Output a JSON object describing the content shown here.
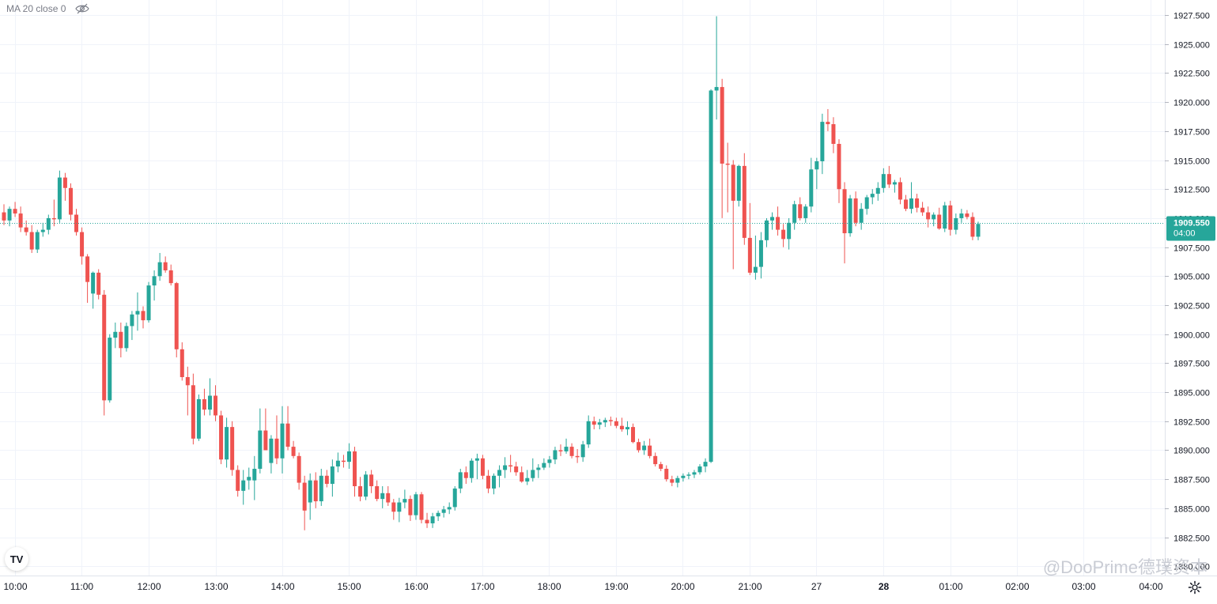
{
  "legend": {
    "text": "MA 20 close 0",
    "icon": "eye-off-icon"
  },
  "price_tag": {
    "price": "1909.550",
    "countdown": "04:00",
    "color": "#26a69a"
  },
  "watermark": "@DooPrime德璞资本",
  "logo": "TV",
  "settings_icon": "gear-icon",
  "colors": {
    "up": "#26a69a",
    "down": "#ef5350",
    "grid": "#f0f3fa",
    "axis_text": "#131722",
    "current_line": "#26a69a"
  },
  "chart_data": {
    "type": "candlestick",
    "y_ticks": [
      "1927.500",
      "1925.000",
      "1922.500",
      "1920.000",
      "1917.500",
      "1915.000",
      "1912.500",
      "1910.000",
      "1907.500",
      "1905.000",
      "1902.500",
      "1900.000",
      "1897.500",
      "1895.000",
      "1892.500",
      "1890.000",
      "1887.500",
      "1885.000",
      "1882.500",
      "1880.000"
    ],
    "x_ticks": [
      "10:00",
      "11:00",
      "12:00",
      "13:00",
      "14:00",
      "15:00",
      "16:00",
      "17:00",
      "18:00",
      "19:00",
      "20:00",
      "21:00",
      "27",
      "28",
      "01:00",
      "02:00",
      "03:00",
      "04:00"
    ],
    "ylim": [
      1879.2,
      1928.8
    ],
    "current_price": 1909.55,
    "grid": true,
    "candles": [
      [
        1910.5,
        1911.2,
        1909.4,
        1909.8
      ],
      [
        1909.8,
        1911.0,
        1909.3,
        1910.8
      ],
      [
        1910.8,
        1911.4,
        1910.1,
        1910.4
      ],
      [
        1910.4,
        1911.0,
        1908.8,
        1909.2
      ],
      [
        1909.2,
        1909.8,
        1908.5,
        1908.8
      ],
      [
        1908.8,
        1909.4,
        1907.0,
        1907.3
      ],
      [
        1907.3,
        1909.0,
        1907.0,
        1908.8
      ],
      [
        1908.8,
        1909.6,
        1908.4,
        1909.0
      ],
      [
        1909.0,
        1910.3,
        1908.6,
        1910.0
      ],
      [
        1910.0,
        1911.6,
        1909.3,
        1909.9
      ],
      [
        1909.9,
        1914.1,
        1909.6,
        1913.5
      ],
      [
        1913.5,
        1913.9,
        1911.5,
        1912.6
      ],
      [
        1912.6,
        1913.0,
        1909.8,
        1910.3
      ],
      [
        1910.3,
        1910.8,
        1908.5,
        1908.8
      ],
      [
        1908.8,
        1909.2,
        1906.0,
        1906.7
      ],
      [
        1906.7,
        1906.9,
        1902.7,
        1904.5
      ],
      [
        1903.5,
        1905.4,
        1902.2,
        1905.3
      ],
      [
        1905.3,
        1905.6,
        1903.0,
        1903.4
      ],
      [
        1903.4,
        1903.8,
        1893.0,
        1894.3
      ],
      [
        1894.3,
        1900.0,
        1894.1,
        1899.7
      ],
      [
        1899.7,
        1901.0,
        1898.8,
        1900.2
      ],
      [
        1900.2,
        1901.0,
        1898.0,
        1898.8
      ],
      [
        1898.8,
        1901.0,
        1898.5,
        1900.7
      ],
      [
        1900.7,
        1902.0,
        1899.5,
        1901.7
      ],
      [
        1901.7,
        1903.6,
        1900.3,
        1902.0
      ],
      [
        1902.0,
        1902.4,
        1900.5,
        1901.2
      ],
      [
        1901.2,
        1904.5,
        1901.0,
        1904.2
      ],
      [
        1904.2,
        1905.5,
        1902.9,
        1905.0
      ],
      [
        1905.0,
        1907.0,
        1904.6,
        1906.2
      ],
      [
        1906.2,
        1906.7,
        1905.3,
        1905.5
      ],
      [
        1905.5,
        1906.0,
        1904.2,
        1904.4
      ],
      [
        1904.4,
        1904.5,
        1898.0,
        1898.7
      ],
      [
        1898.7,
        1899.3,
        1896.0,
        1896.3
      ],
      [
        1896.3,
        1897.2,
        1893.0,
        1895.6
      ],
      [
        1895.6,
        1896.6,
        1890.5,
        1891.0
      ],
      [
        1891.0,
        1894.8,
        1890.8,
        1894.4
      ],
      [
        1894.4,
        1895.3,
        1893.0,
        1893.5
      ],
      [
        1893.5,
        1896.2,
        1893.0,
        1894.7
      ],
      [
        1894.7,
        1895.6,
        1892.5,
        1893.0
      ],
      [
        1893.0,
        1893.4,
        1888.8,
        1889.2
      ],
      [
        1889.2,
        1892.8,
        1888.5,
        1892.0
      ],
      [
        1892.0,
        1892.5,
        1887.8,
        1888.3
      ],
      [
        1888.3,
        1888.7,
        1886.0,
        1886.5
      ],
      [
        1886.5,
        1888.3,
        1885.3,
        1887.4
      ],
      [
        1887.4,
        1888.5,
        1886.6,
        1887.7
      ],
      [
        1887.4,
        1889.5,
        1885.7,
        1888.4
      ],
      [
        1888.4,
        1893.6,
        1888.0,
        1891.7
      ],
      [
        1891.7,
        1893.6,
        1890.0,
        1890.0
      ],
      [
        1888.9,
        1891.3,
        1888.0,
        1891.0
      ],
      [
        1891.0,
        1893.0,
        1888.8,
        1889.3
      ],
      [
        1889.3,
        1893.8,
        1888.0,
        1892.3
      ],
      [
        1892.3,
        1893.8,
        1890.0,
        1890.3
      ],
      [
        1890.3,
        1890.8,
        1889.3,
        1889.5
      ],
      [
        1889.5,
        1889.8,
        1886.6,
        1887.2
      ],
      [
        1887.2,
        1887.8,
        1883.1,
        1884.8
      ],
      [
        1885.5,
        1888.0,
        1884.0,
        1887.4
      ],
      [
        1887.4,
        1888.1,
        1885.0,
        1885.6
      ],
      [
        1885.6,
        1888.4,
        1885.2,
        1887.8
      ],
      [
        1887.8,
        1888.3,
        1886.8,
        1887.1
      ],
      [
        1887.1,
        1889.2,
        1886.0,
        1888.6
      ],
      [
        1888.6,
        1889.8,
        1888.1,
        1889.1
      ],
      [
        1889.1,
        1889.6,
        1888.5,
        1889.0
      ],
      [
        1889.0,
        1890.6,
        1888.4,
        1889.9
      ],
      [
        1889.9,
        1890.3,
        1886.0,
        1886.9
      ],
      [
        1886.9,
        1887.7,
        1885.6,
        1886.0
      ],
      [
        1886.0,
        1888.2,
        1885.7,
        1887.9
      ],
      [
        1887.9,
        1888.3,
        1886.3,
        1886.9
      ],
      [
        1886.9,
        1887.4,
        1885.6,
        1885.8
      ],
      [
        1885.8,
        1886.9,
        1885.0,
        1886.3
      ],
      [
        1886.3,
        1886.9,
        1885.2,
        1885.5
      ],
      [
        1885.5,
        1885.8,
        1884.0,
        1884.7
      ],
      [
        1884.7,
        1885.9,
        1883.8,
        1885.5
      ],
      [
        1885.5,
        1886.6,
        1885.0,
        1885.8
      ],
      [
        1885.8,
        1886.1,
        1883.9,
        1884.4
      ],
      [
        1884.4,
        1886.4,
        1884.0,
        1886.2
      ],
      [
        1886.2,
        1886.4,
        1883.7,
        1884.0
      ],
      [
        1884.0,
        1884.6,
        1883.3,
        1883.7
      ],
      [
        1883.7,
        1884.6,
        1883.3,
        1884.3
      ],
      [
        1884.3,
        1884.8,
        1883.9,
        1884.6
      ],
      [
        1884.6,
        1885.2,
        1884.2,
        1884.9
      ],
      [
        1884.9,
        1885.5,
        1884.5,
        1885.1
      ],
      [
        1885.1,
        1886.9,
        1884.8,
        1886.7
      ],
      [
        1886.7,
        1888.4,
        1886.3,
        1888.1
      ],
      [
        1888.1,
        1888.6,
        1887.1,
        1887.6
      ],
      [
        1887.6,
        1889.3,
        1887.2,
        1889.1
      ],
      [
        1889.1,
        1889.7,
        1887.5,
        1889.3
      ],
      [
        1889.3,
        1889.6,
        1887.5,
        1887.8
      ],
      [
        1887.8,
        1888.3,
        1886.3,
        1886.7
      ],
      [
        1886.7,
        1888.0,
        1886.2,
        1887.8
      ],
      [
        1887.8,
        1888.7,
        1886.8,
        1888.3
      ],
      [
        1888.3,
        1889.4,
        1887.6,
        1888.7
      ],
      [
        1888.7,
        1889.6,
        1888.1,
        1888.6
      ],
      [
        1888.6,
        1889.0,
        1887.8,
        1888.1
      ],
      [
        1888.1,
        1888.6,
        1887.2,
        1887.3
      ],
      [
        1887.3,
        1888.3,
        1887.0,
        1887.6
      ],
      [
        1887.6,
        1889.3,
        1887.3,
        1888.3
      ],
      [
        1888.3,
        1888.8,
        1887.6,
        1888.5
      ],
      [
        1888.5,
        1889.3,
        1888.3,
        1888.9
      ],
      [
        1888.9,
        1889.5,
        1888.5,
        1889.2
      ],
      [
        1889.2,
        1890.3,
        1888.8,
        1890.0
      ],
      [
        1890.0,
        1890.5,
        1889.5,
        1889.9
      ],
      [
        1889.9,
        1891.0,
        1889.7,
        1890.3
      ],
      [
        1890.3,
        1890.6,
        1889.3,
        1889.5
      ],
      [
        1889.5,
        1890.1,
        1888.9,
        1889.4
      ],
      [
        1889.4,
        1890.8,
        1889.0,
        1890.5
      ],
      [
        1890.5,
        1893.0,
        1890.2,
        1892.5
      ],
      [
        1892.5,
        1892.9,
        1891.8,
        1892.2
      ],
      [
        1892.2,
        1892.7,
        1891.8,
        1892.4
      ],
      [
        1892.4,
        1892.8,
        1892.0,
        1892.6
      ],
      [
        1892.6,
        1892.9,
        1892.1,
        1892.5
      ],
      [
        1892.5,
        1892.8,
        1891.9,
        1892.1
      ],
      [
        1892.1,
        1892.8,
        1891.6,
        1891.8
      ],
      [
        1891.8,
        1892.5,
        1891.3,
        1892.0
      ],
      [
        1892.0,
        1892.3,
        1890.6,
        1890.7
      ],
      [
        1890.7,
        1891.0,
        1889.8,
        1890.0
      ],
      [
        1890.0,
        1890.8,
        1889.6,
        1890.4
      ],
      [
        1890.4,
        1891.0,
        1889.3,
        1889.5
      ],
      [
        1889.5,
        1889.8,
        1888.6,
        1888.8
      ],
      [
        1888.8,
        1889.0,
        1888.2,
        1888.4
      ],
      [
        1888.4,
        1888.7,
        1887.3,
        1887.5
      ],
      [
        1887.5,
        1887.8,
        1886.9,
        1887.2
      ],
      [
        1887.2,
        1887.8,
        1886.8,
        1887.6
      ],
      [
        1887.6,
        1888.0,
        1887.3,
        1887.8
      ],
      [
        1887.8,
        1888.1,
        1887.5,
        1887.9
      ],
      [
        1887.9,
        1888.3,
        1887.6,
        1888.1
      ],
      [
        1888.1,
        1888.8,
        1887.9,
        1888.6
      ],
      [
        1888.6,
        1889.3,
        1888.1,
        1889.0
      ],
      [
        1889.0,
        1921.1,
        1888.9,
        1921.0
      ],
      [
        1921.0,
        1927.4,
        1918.5,
        1921.3
      ],
      [
        1921.3,
        1922.0,
        1910.0,
        1914.7
      ],
      [
        1914.7,
        1916.5,
        1910.5,
        1914.6
      ],
      [
        1914.6,
        1915.0,
        1905.6,
        1911.5
      ],
      [
        1911.5,
        1914.6,
        1911.0,
        1914.5
      ],
      [
        1914.5,
        1915.6,
        1907.7,
        1908.3
      ],
      [
        1908.3,
        1911.3,
        1905.1,
        1905.3
      ],
      [
        1905.3,
        1908.5,
        1904.7,
        1905.8
      ],
      [
        1905.8,
        1908.8,
        1904.8,
        1908.1
      ],
      [
        1908.1,
        1910.0,
        1907.5,
        1909.8
      ],
      [
        1909.8,
        1910.5,
        1909.0,
        1910.1
      ],
      [
        1910.1,
        1911.0,
        1908.5,
        1909.0
      ],
      [
        1909.0,
        1909.5,
        1907.5,
        1908.2
      ],
      [
        1908.2,
        1910.0,
        1907.3,
        1909.6
      ],
      [
        1909.6,
        1911.5,
        1909.0,
        1911.2
      ],
      [
        1911.2,
        1911.8,
        1909.8,
        1910.0
      ],
      [
        1910.0,
        1911.2,
        1909.6,
        1911.0
      ],
      [
        1911.0,
        1915.2,
        1910.5,
        1914.2
      ],
      [
        1914.2,
        1915.2,
        1912.5,
        1914.9
      ],
      [
        1914.9,
        1919.0,
        1913.8,
        1918.3
      ],
      [
        1918.3,
        1919.4,
        1917.5,
        1918.1
      ],
      [
        1918.1,
        1918.7,
        1915.6,
        1916.4
      ],
      [
        1916.4,
        1916.8,
        1911.3,
        1912.5
      ],
      [
        1912.5,
        1913.1,
        1906.1,
        1908.7
      ],
      [
        1908.7,
        1912.0,
        1908.4,
        1911.7
      ],
      [
        1911.7,
        1912.3,
        1909.3,
        1909.6
      ],
      [
        1909.6,
        1911.3,
        1909.0,
        1910.8
      ],
      [
        1910.8,
        1912.0,
        1910.3,
        1911.8
      ],
      [
        1911.8,
        1912.5,
        1911.2,
        1912.1
      ],
      [
        1912.1,
        1913.1,
        1911.5,
        1912.6
      ],
      [
        1912.6,
        1914.3,
        1912.2,
        1913.8
      ],
      [
        1913.8,
        1914.5,
        1912.6,
        1912.9
      ],
      [
        1912.9,
        1913.3,
        1912.2,
        1913.1
      ],
      [
        1913.1,
        1913.5,
        1911.2,
        1911.6
      ],
      [
        1911.6,
        1912.0,
        1910.6,
        1910.8
      ],
      [
        1910.8,
        1913.1,
        1910.4,
        1911.7
      ],
      [
        1911.7,
        1912.1,
        1910.5,
        1910.9
      ],
      [
        1910.9,
        1911.4,
        1910.2,
        1910.5
      ],
      [
        1910.5,
        1911.0,
        1909.2,
        1909.9
      ],
      [
        1909.9,
        1910.5,
        1909.3,
        1910.3
      ],
      [
        1910.3,
        1910.9,
        1909.0,
        1909.1
      ],
      [
        1909.1,
        1911.4,
        1908.8,
        1911.1
      ],
      [
        1911.1,
        1911.5,
        1908.5,
        1909.0
      ],
      [
        1909.0,
        1910.4,
        1908.6,
        1910.0
      ],
      [
        1910.0,
        1910.8,
        1909.6,
        1910.4
      ],
      [
        1910.4,
        1910.7,
        1909.9,
        1910.1
      ],
      [
        1910.1,
        1910.5,
        1908.1,
        1908.4
      ],
      [
        1908.4,
        1909.7,
        1908.1,
        1909.5
      ]
    ]
  }
}
